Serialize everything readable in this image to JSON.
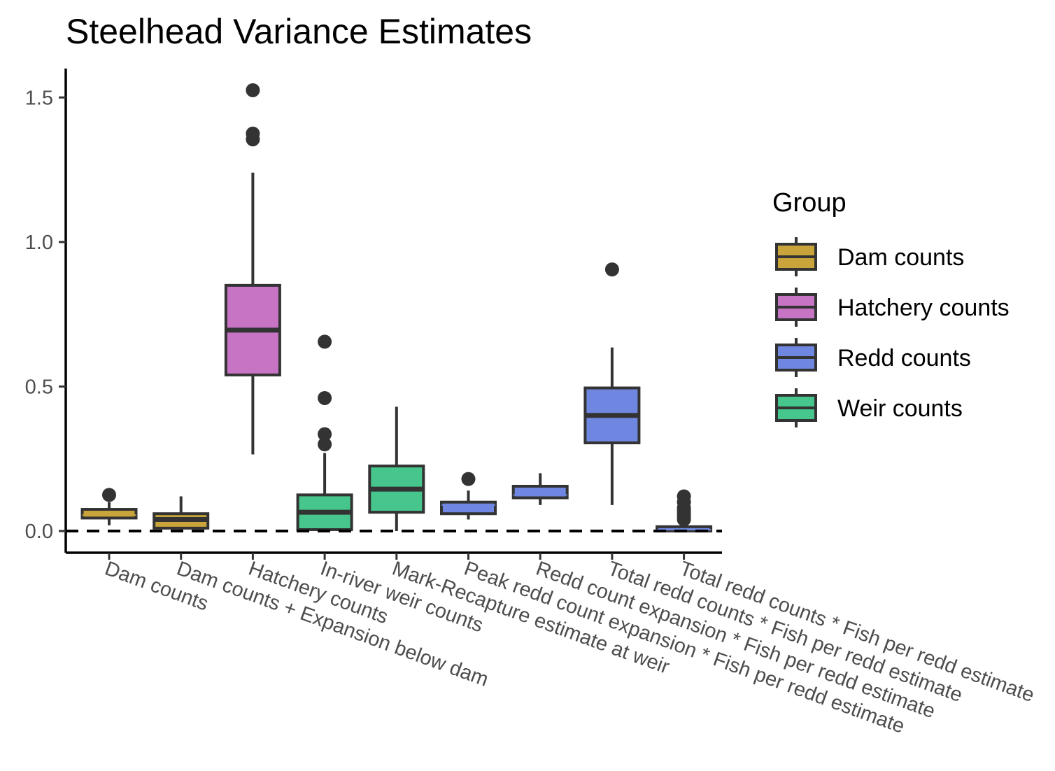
{
  "chart_data": {
    "type": "box",
    "title": "Steelhead Variance Estimates",
    "xlabel": "",
    "ylabel": "",
    "ylim": [
      -0.075,
      1.6
    ],
    "yticks": [
      0.0,
      0.5,
      1.0,
      1.5
    ],
    "ytick_labels": [
      "0.0",
      "0.5",
      "1.0",
      "1.5"
    ],
    "reference_line": {
      "y": 0,
      "style": "dashed"
    },
    "grid": false,
    "legend": {
      "title": "Group",
      "placement": "right",
      "entries": [
        {
          "name": "Dam counts",
          "color": "#C9A43A"
        },
        {
          "name": "Hatchery counts",
          "color": "#C774C5"
        },
        {
          "name": "Redd counts",
          "color": "#6F87E0"
        },
        {
          "name": "Weir counts",
          "color": "#46C68C"
        }
      ]
    },
    "categories": [
      "Dam counts",
      "Dam counts + Expansion below dam",
      "Hatchery counts",
      "In-river weir counts",
      "Mark-Recapture estimate at weir",
      "Peak redd count expansion * Fish per redd estimate",
      "Redd count expansion * Fish per redd estimate",
      "Total redd counts * Fish per redd estimate",
      "Total redd counts * Fish per redd estimate"
    ],
    "boxes": [
      {
        "category": "Dam counts",
        "group": "Dam counts",
        "whisker_low": 0.02,
        "q1": 0.045,
        "median": 0.055,
        "q3": 0.075,
        "whisker_high": 0.1,
        "outliers": [
          0.125
        ]
      },
      {
        "category": "Dam counts + Expansion below dam",
        "group": "Dam counts",
        "whisker_low": 0.0,
        "q1": 0.01,
        "median": 0.04,
        "q3": 0.06,
        "whisker_high": 0.12,
        "outliers": []
      },
      {
        "category": "Hatchery counts",
        "group": "Hatchery counts",
        "whisker_low": 0.265,
        "q1": 0.54,
        "median": 0.695,
        "q3": 0.85,
        "whisker_high": 1.24,
        "outliers": [
          1.355,
          1.375,
          1.525
        ]
      },
      {
        "category": "In-river weir counts",
        "group": "Weir counts",
        "whisker_low": 0.0,
        "q1": 0.005,
        "median": 0.065,
        "q3": 0.125,
        "whisker_high": 0.27,
        "outliers": [
          0.3,
          0.335,
          0.46,
          0.655
        ]
      },
      {
        "category": "Mark-Recapture estimate at weir",
        "group": "Weir counts",
        "whisker_low": 0.0,
        "q1": 0.065,
        "median": 0.145,
        "q3": 0.225,
        "whisker_high": 0.43,
        "outliers": []
      },
      {
        "category": "Peak redd count expansion * Fish per redd estimate",
        "group": "Redd counts",
        "whisker_low": 0.04,
        "q1": 0.06,
        "median": 0.09,
        "q3": 0.1,
        "whisker_high": 0.14,
        "outliers": [
          0.18
        ]
      },
      {
        "category": "Redd count expansion * Fish per redd estimate",
        "group": "Redd counts",
        "whisker_low": 0.09,
        "q1": 0.115,
        "median": 0.125,
        "q3": 0.155,
        "whisker_high": 0.2,
        "outliers": []
      },
      {
        "category": "Total redd counts * Fish per redd estimate",
        "group": "Redd counts",
        "whisker_low": 0.09,
        "q1": 0.305,
        "median": 0.4,
        "q3": 0.495,
        "whisker_high": 0.635,
        "outliers": [
          0.905
        ]
      },
      {
        "category": "Total redd counts * Fish per redd estimate",
        "group": "Redd counts",
        "whisker_low": 0.0,
        "q1": 0.0,
        "median": 0.005,
        "q3": 0.015,
        "whisker_high": 0.03,
        "outliers": [
          0.04,
          0.05,
          0.06,
          0.07,
          0.08,
          0.1,
          0.12
        ]
      }
    ]
  }
}
